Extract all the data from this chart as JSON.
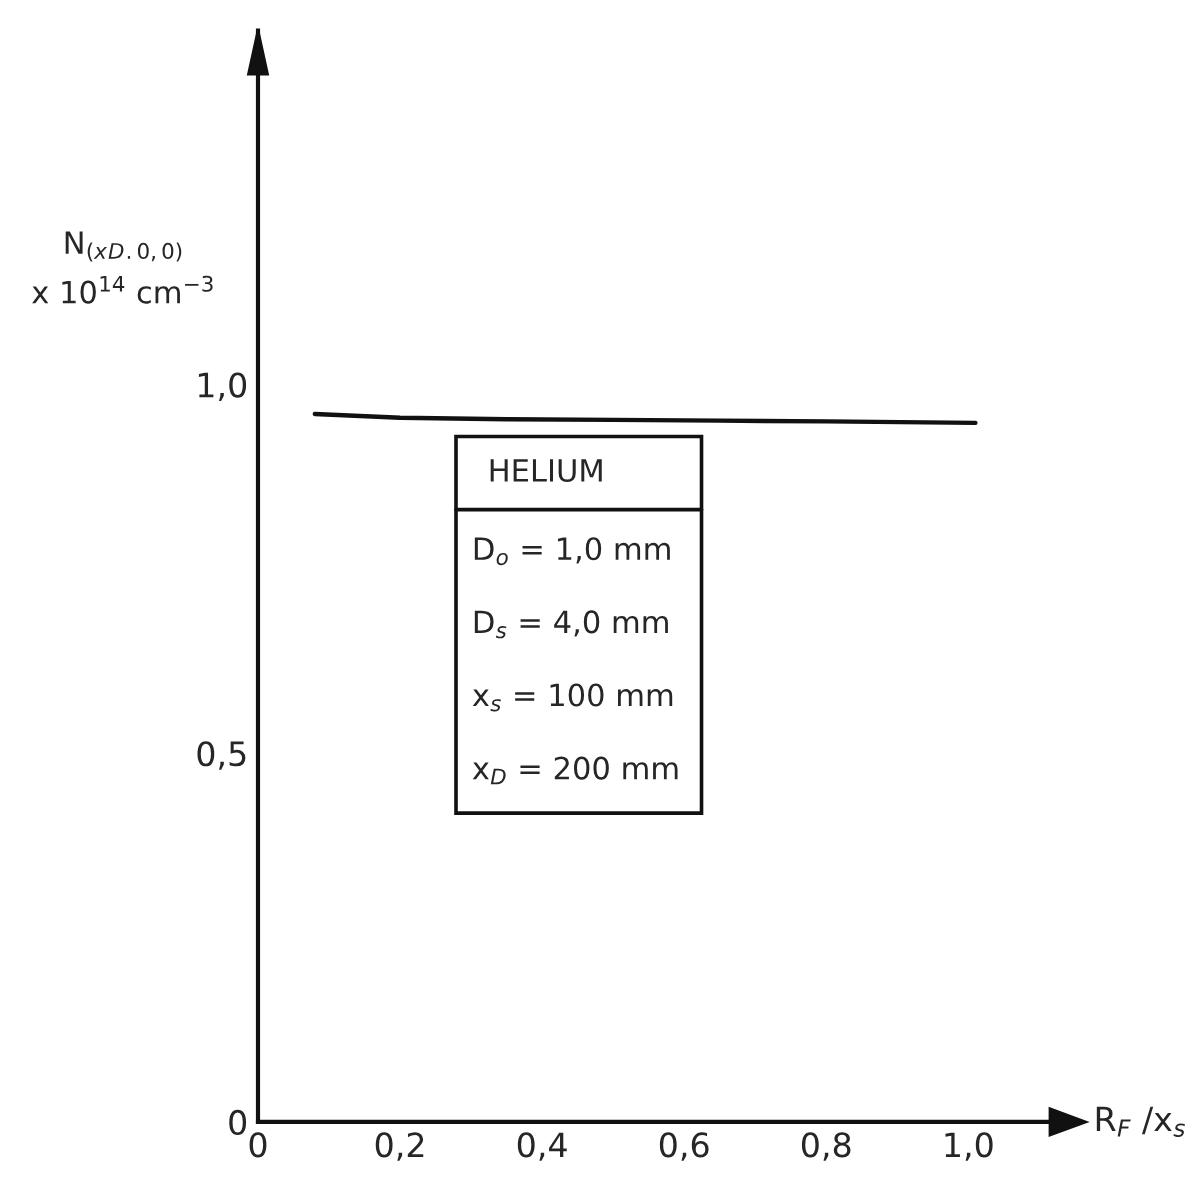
{
  "chart_data": {
    "type": "line",
    "xlabel": "R$_{F}$ /x$_{s}$",
    "ylabel": "N$_{(x}$$_{D}$$_{.0,0)}$\nx 10$^{14}$ cm$^{−3}$",
    "x": [
      0.08,
      0.2,
      0.35,
      0.5,
      0.65,
      0.8,
      1.01
    ],
    "series": [
      {
        "color": "#111111",
        "values": [
          0.96,
          0.955,
          0.953,
          0.952,
          0.951,
          0.95,
          0.948
        ]
      }
    ],
    "xlim": [
      0,
      1.115
    ],
    "ylim": [
      0,
      1.48
    ],
    "xticks": [
      0,
      {
        "value": 0.2,
        "label": "0,2"
      },
      {
        "value": 0.4,
        "label": "0,4"
      },
      {
        "value": 0.6,
        "label": "0,6"
      },
      {
        "value": 0.8,
        "label": "0,8"
      },
      {
        "value": 1.0,
        "label": "1,0"
      }
    ],
    "yticks": [
      0,
      {
        "value": 0.5,
        "label": "0,5"
      },
      {
        "value": 1.0,
        "label": "1,0"
      }
    ],
    "grid": false,
    "legend": false,
    "marker": "none",
    "line_style": "solid",
    "annotations": [
      "HELIUM",
      "D$_{o}$ = 1,0 mm",
      "D$_{s}$ = 4,0 mm",
      "x$_{s}$ = 100 mm",
      "x$_{D}$ = 200 mm"
    ]
  }
}
